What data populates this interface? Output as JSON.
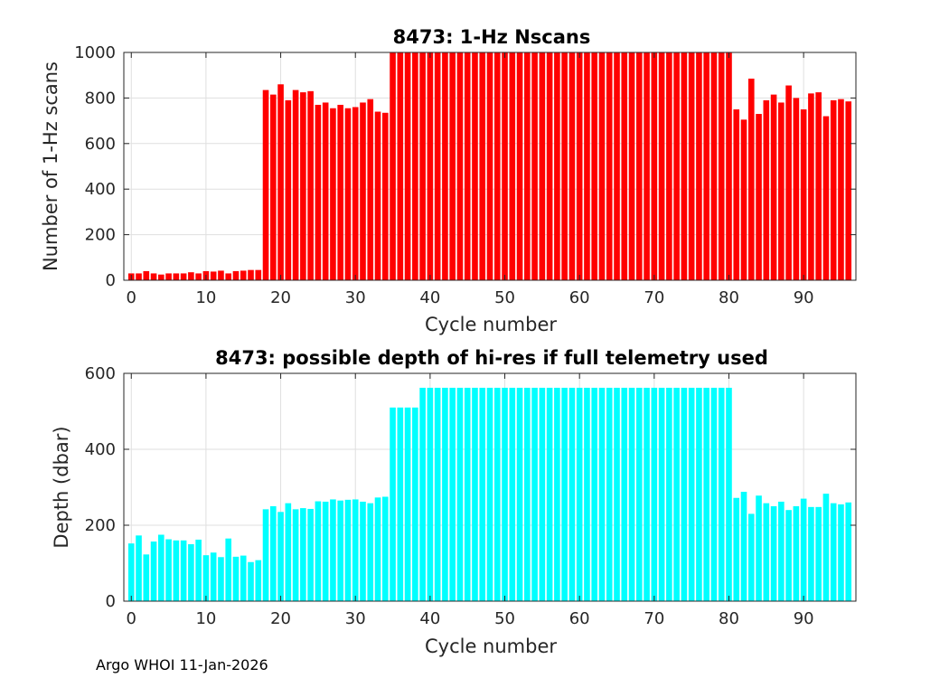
{
  "footer": "Argo WHOI 11-Jan-2026",
  "chart_data": [
    {
      "type": "bar",
      "title": "8473: 1-Hz Nscans",
      "xlabel": "Cycle number",
      "ylabel": "Number of 1-Hz scans",
      "xlim": [
        -1,
        97
      ],
      "ylim": [
        0,
        1000
      ],
      "xticks": [
        0,
        10,
        20,
        30,
        40,
        50,
        60,
        70,
        80,
        90
      ],
      "yticks": [
        0,
        200,
        400,
        600,
        800,
        1000
      ],
      "grid": true,
      "color": "#ff0000",
      "x": [
        0,
        1,
        2,
        3,
        4,
        5,
        6,
        7,
        8,
        9,
        10,
        11,
        12,
        13,
        14,
        15,
        16,
        17,
        18,
        19,
        20,
        21,
        22,
        23,
        24,
        25,
        26,
        27,
        28,
        29,
        30,
        31,
        32,
        33,
        34,
        35,
        36,
        37,
        38,
        39,
        40,
        41,
        42,
        43,
        44,
        45,
        46,
        47,
        48,
        49,
        50,
        51,
        52,
        53,
        54,
        55,
        56,
        57,
        58,
        59,
        60,
        61,
        62,
        63,
        64,
        65,
        66,
        67,
        68,
        69,
        70,
        71,
        72,
        73,
        74,
        75,
        76,
        77,
        78,
        79,
        80,
        81,
        82,
        83,
        84,
        85,
        86,
        87,
        88,
        89,
        90,
        91,
        92,
        93,
        94,
        95,
        96
      ],
      "values": [
        30,
        30,
        40,
        30,
        25,
        30,
        30,
        30,
        35,
        30,
        40,
        38,
        42,
        30,
        40,
        42,
        45,
        45,
        835,
        815,
        860,
        790,
        835,
        825,
        830,
        770,
        780,
        755,
        770,
        755,
        760,
        780,
        795,
        740,
        735,
        1000,
        1000,
        1000,
        1000,
        1000,
        1000,
        1000,
        1000,
        1000,
        1000,
        1000,
        1000,
        1000,
        1000,
        1000,
        1000,
        1000,
        1000,
        1000,
        1000,
        1000,
        1000,
        1000,
        1000,
        1000,
        1000,
        1000,
        1000,
        1000,
        1000,
        1000,
        1000,
        1000,
        1000,
        1000,
        1000,
        1000,
        1000,
        1000,
        1000,
        1000,
        1000,
        1000,
        1000,
        1000,
        1000,
        750,
        705,
        885,
        730,
        790,
        815,
        780,
        855,
        800,
        750,
        820,
        825,
        720,
        790,
        795,
        785
      ]
    },
    {
      "type": "bar",
      "title": "8473: possible depth of hi-res if full telemetry used",
      "xlabel": "Cycle number",
      "ylabel": "Depth (dbar)",
      "xlim": [
        -1,
        97
      ],
      "ylim": [
        0,
        600
      ],
      "xticks": [
        0,
        10,
        20,
        30,
        40,
        50,
        60,
        70,
        80,
        90
      ],
      "yticks": [
        0,
        200,
        400,
        600
      ],
      "grid": true,
      "color": "#00ffff",
      "x": [
        0,
        1,
        2,
        3,
        4,
        5,
        6,
        7,
        8,
        9,
        10,
        11,
        12,
        13,
        14,
        15,
        16,
        17,
        18,
        19,
        20,
        21,
        22,
        23,
        24,
        25,
        26,
        27,
        28,
        29,
        30,
        31,
        32,
        33,
        34,
        35,
        36,
        37,
        38,
        39,
        40,
        41,
        42,
        43,
        44,
        45,
        46,
        47,
        48,
        49,
        50,
        51,
        52,
        53,
        54,
        55,
        56,
        57,
        58,
        59,
        60,
        61,
        62,
        63,
        64,
        65,
        66,
        67,
        68,
        69,
        70,
        71,
        72,
        73,
        74,
        75,
        76,
        77,
        78,
        79,
        80,
        81,
        82,
        83,
        84,
        85,
        86,
        87,
        88,
        89,
        90,
        91,
        92,
        93,
        94,
        95,
        96
      ],
      "values": [
        152,
        173,
        123,
        157,
        175,
        163,
        160,
        160,
        150,
        162,
        121,
        128,
        116,
        165,
        117,
        120,
        103,
        108,
        242,
        250,
        235,
        258,
        242,
        245,
        243,
        263,
        262,
        268,
        265,
        267,
        268,
        262,
        258,
        273,
        275,
        510,
        510,
        510,
        510,
        562,
        562,
        562,
        562,
        562,
        562,
        562,
        562,
        562,
        562,
        562,
        562,
        562,
        562,
        562,
        562,
        562,
        562,
        562,
        562,
        562,
        562,
        562,
        562,
        562,
        562,
        562,
        562,
        562,
        562,
        562,
        562,
        562,
        562,
        562,
        562,
        562,
        562,
        562,
        562,
        562,
        562,
        272,
        288,
        230,
        278,
        258,
        250,
        262,
        240,
        250,
        270,
        248,
        248,
        283,
        258,
        255,
        260
      ]
    }
  ]
}
